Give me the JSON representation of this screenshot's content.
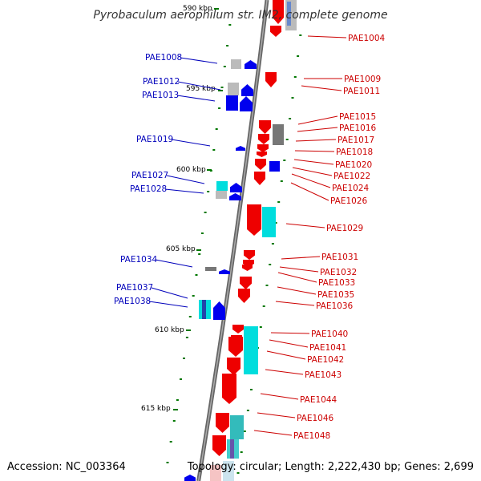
{
  "title": "Pyrobaculum aerophilum str. IM2, complete genome",
  "accession": "Accession: NC_003364",
  "topology": "Topology: circular; Length: 2,222,430 bp; Genes: 2,699",
  "colors": {
    "forward_label": "#0000bb",
    "reverse_label": "#cc0000",
    "forward_gene": "#0000ee",
    "reverse_gene": "#ee0000",
    "backbone": "#888888",
    "tick": "#007700",
    "cyan_feature": "#00dddd",
    "grey_feature": "#999999"
  },
  "kbp_labels": [
    {
      "value": "590 kbp",
      "faded": true
    },
    {
      "value": "595 kbp"
    },
    {
      "value": "600 kbp"
    },
    {
      "value": "605 kbp"
    },
    {
      "value": "610 kbp"
    },
    {
      "value": "615 kbp"
    }
  ],
  "genes_forward": [
    "PAE1008",
    "PAE1012",
    "PAE1013",
    "PAE1019",
    "PAE1027",
    "PAE1028",
    "PAE1034",
    "PAE1037",
    "PAE1038"
  ],
  "genes_reverse": [
    "PAE1004",
    "PAE1009",
    "PAE1011",
    "PAE1015",
    "PAE1016",
    "PAE1017",
    "PAE1018",
    "PAE1020",
    "PAE1022",
    "PAE1024",
    "PAE1026",
    "PAE1029",
    "PAE1031",
    "PAE1032",
    "PAE1033",
    "PAE1035",
    "PAE1036",
    "PAE1040",
    "PAE1041",
    "PAE1042",
    "PAE1043",
    "PAE1044",
    "PAE1046",
    "PAE1048"
  ]
}
